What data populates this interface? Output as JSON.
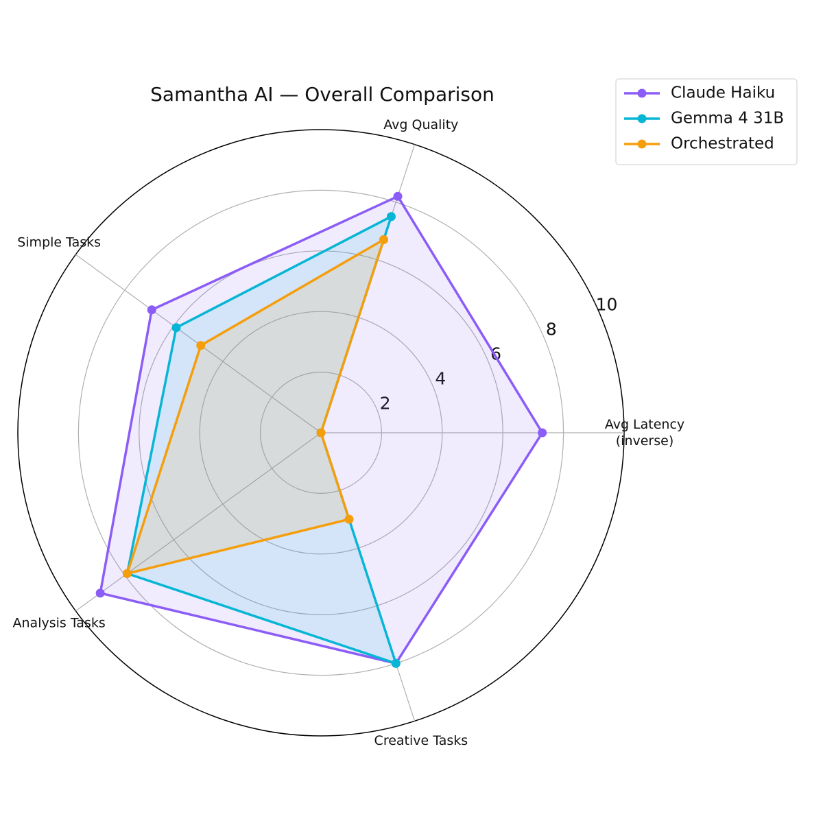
{
  "chart_data": {
    "type": "radar",
    "title": "Samantha AI — Overall Comparison",
    "categories": [
      "Avg Latency\n(inverse)",
      "Avg Quality",
      "Simple Tasks",
      "Analysis Tasks",
      "Creative Tasks"
    ],
    "series": [
      {
        "name": "Claude Haiku",
        "color": "#8b5cf6",
        "values": [
          7.3,
          8.2,
          6.9,
          9.0,
          8.0
        ]
      },
      {
        "name": "Gemma 4 31B",
        "color": "#06b6d4",
        "values": [
          0,
          7.5,
          5.9,
          7.9,
          8.0
        ]
      },
      {
        "name": "Orchestrated",
        "color": "#f59e0b",
        "values": [
          0,
          6.7,
          4.9,
          7.9,
          3.0
        ]
      }
    ],
    "ylim": [
      0,
      10
    ],
    "yticks": [
      2,
      4,
      6,
      8,
      10
    ],
    "grid": true,
    "legend": "upper right"
  }
}
